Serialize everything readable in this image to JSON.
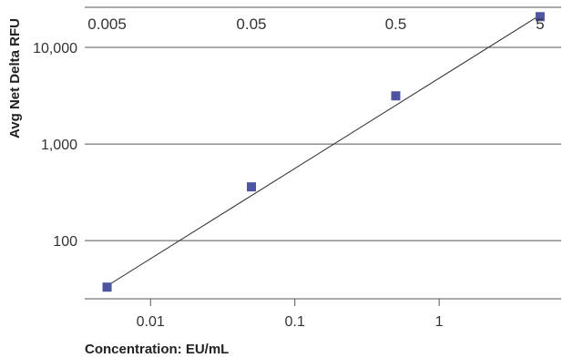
{
  "chart_data": {
    "type": "scatter",
    "title": "",
    "xlabel": "Concentration: EU/mL",
    "ylabel": "Avg Net Delta RFU",
    "x_scale": "log",
    "y_scale": "log",
    "xlim": [
      0.0035,
      7
    ],
    "ylim": [
      25,
      26000
    ],
    "x_ticks": [
      0.01,
      0.1,
      1
    ],
    "x_tick_labels": [
      "0.01",
      "0.1",
      "1"
    ],
    "y_ticks": [
      100,
      1000,
      10000
    ],
    "y_tick_labels": [
      "100",
      "1,000",
      "10,000"
    ],
    "top_labels": [
      "0.005",
      "0.05",
      "0.5",
      "5"
    ],
    "grid": "horizontal",
    "series": [
      {
        "x": [
          0.005,
          0.05,
          0.5,
          5
        ],
        "y": [
          33,
          360,
          3150,
          20800
        ],
        "color": "#4d55a0",
        "marker": "square"
      }
    ],
    "fit_line": {
      "x": [
        0.005,
        5
      ],
      "y": [
        34,
        21600
      ],
      "color": "#2b2b2b"
    }
  }
}
